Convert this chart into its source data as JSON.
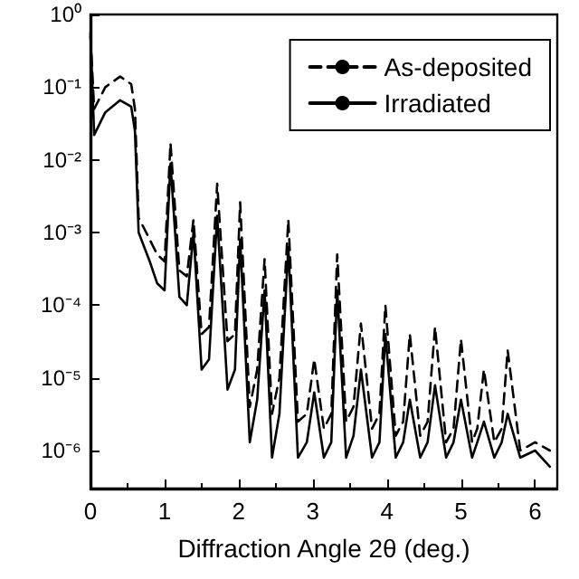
{
  "chart_data": {
    "type": "line",
    "xlabel": "Diffraction Angle 2θ (deg.)",
    "log": "y",
    "grid": false,
    "legend": "top right",
    "marker": "none",
    "xlim": [
      0,
      6.3
    ],
    "xticks": [
      0,
      1,
      2,
      3,
      4,
      5,
      6
    ],
    "ylim": [
      3e-07,
      1
    ],
    "yticks": [
      {
        "value": 1,
        "label": "10⁰"
      },
      {
        "value": 0.1,
        "label": "10⁻¹"
      },
      {
        "value": 0.01,
        "label": "10⁻²"
      },
      {
        "value": 0.001,
        "label": "10⁻³"
      },
      {
        "value": 0.0001,
        "label": "10⁻⁴"
      },
      {
        "value": 1e-05,
        "label": "10⁻⁵"
      },
      {
        "value": 1e-06,
        "label": "10⁻⁶"
      }
    ],
    "series": [
      {
        "name": "As-deposited",
        "color": "#000000",
        "line_style": "dashed",
        "x": [
          0,
          0.05,
          0.2,
          0.4,
          0.55,
          0.6,
          0.65,
          0.8,
          0.9,
          1.0,
          1.08,
          1.2,
          1.3,
          1.39,
          1.5,
          1.6,
          1.71,
          1.85,
          1.95,
          2.02,
          2.15,
          2.25,
          2.35,
          2.45,
          2.55,
          2.67,
          2.8,
          2.92,
          3.02,
          3.15,
          3.25,
          3.33,
          3.45,
          3.55,
          3.65,
          3.8,
          3.9,
          3.98,
          4.12,
          4.22,
          4.31,
          4.45,
          4.55,
          4.65,
          4.8,
          4.9,
          5.0,
          5.15,
          5.22,
          5.31,
          5.45,
          5.55,
          5.63,
          5.8,
          6.0,
          6.2
        ],
        "values": [
          0.5,
          0.05,
          0.1,
          0.14,
          0.11,
          0.05,
          0.0016,
          0.0008,
          0.0005,
          0.0004,
          0.017,
          0.0003,
          0.00025,
          0.0015,
          4e-05,
          5e-05,
          0.0047,
          3.2e-05,
          4e-05,
          0.0026,
          4e-06,
          1.3e-05,
          0.00043,
          3.2e-06,
          1e-05,
          0.0015,
          2.5e-06,
          3.2e-06,
          1.8e-05,
          2e-06,
          3.2e-06,
          0.0005,
          2.5e-06,
          4e-06,
          5.6e-05,
          2e-06,
          3.2e-06,
          0.0001,
          1.6e-06,
          2.5e-06,
          4e-05,
          1.6e-06,
          2.5e-06,
          5e-05,
          1.3e-06,
          2e-06,
          3.4e-05,
          1.3e-06,
          2e-06,
          1.3e-05,
          1.3e-06,
          2e-06,
          2.4e-05,
          1e-06,
          1.3e-06,
          1e-06
        ]
      },
      {
        "name": "Irradiated",
        "color": "#000000",
        "line_style": "solid",
        "x": [
          0,
          0.05,
          0.2,
          0.4,
          0.55,
          0.6,
          0.65,
          0.8,
          0.9,
          1.0,
          1.08,
          1.2,
          1.3,
          1.39,
          1.5,
          1.6,
          1.71,
          1.85,
          1.95,
          2.02,
          2.15,
          2.25,
          2.35,
          2.45,
          2.55,
          2.67,
          2.8,
          2.92,
          3.02,
          3.15,
          3.25,
          3.33,
          3.45,
          3.55,
          3.65,
          3.8,
          3.9,
          3.98,
          4.12,
          4.22,
          4.31,
          4.45,
          4.55,
          4.65,
          4.8,
          4.9,
          5.0,
          5.15,
          5.22,
          5.31,
          5.45,
          5.55,
          5.63,
          5.8,
          6.0,
          6.2
        ],
        "values": [
          0.56,
          0.022,
          0.045,
          0.066,
          0.054,
          0.025,
          0.001,
          0.0004,
          0.0002,
          0.00016,
          0.0089,
          0.00013,
          0.0001,
          0.001,
          1.3e-05,
          1.8e-05,
          0.0017,
          6.9e-06,
          1.3e-05,
          0.0008,
          1.3e-06,
          5e-06,
          0.00016,
          8e-07,
          3.2e-06,
          0.00063,
          8e-07,
          1.3e-06,
          6.3e-06,
          8e-07,
          1.3e-06,
          0.00016,
          8e-07,
          1.6e-06,
          1.3e-05,
          8e-07,
          1.3e-06,
          4e-05,
          8e-07,
          1.3e-06,
          5e-06,
          8e-07,
          1.3e-06,
          7.9e-06,
          8e-07,
          1.3e-06,
          5e-06,
          8e-07,
          1.3e-06,
          2.5e-06,
          8e-07,
          1.3e-06,
          3.2e-06,
          8e-07,
          1e-06,
          6e-07
        ]
      }
    ]
  }
}
